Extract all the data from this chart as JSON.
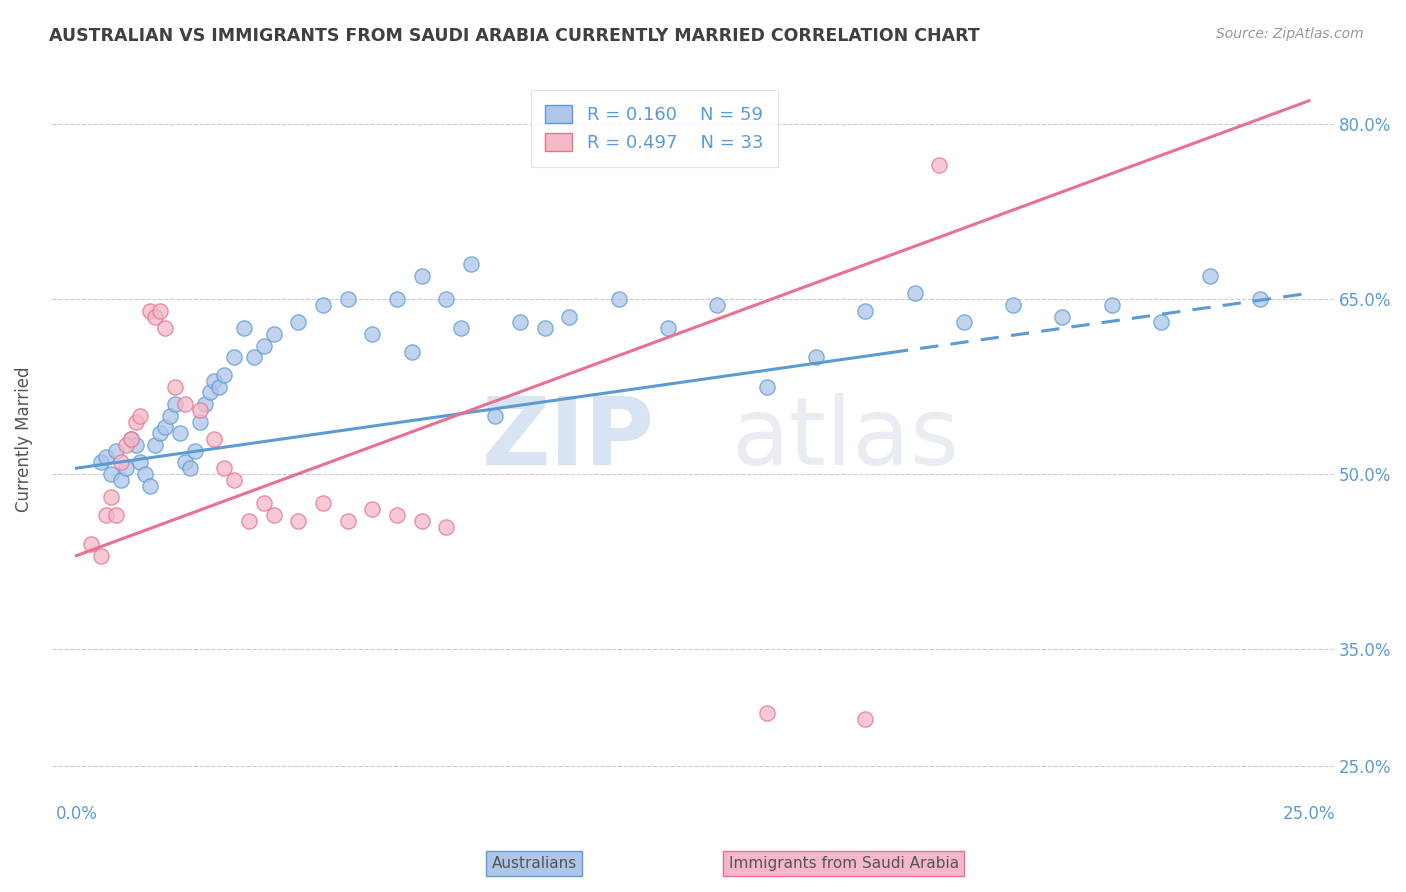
{
  "title": "AUSTRALIAN VS IMMIGRANTS FROM SAUDI ARABIA CURRENTLY MARRIED CORRELATION CHART",
  "source": "Source: ZipAtlas.com",
  "ylabel": "Currently Married",
  "x_ticks": [
    0.0,
    2.5,
    5.0,
    7.5,
    10.0,
    12.5,
    15.0,
    17.5,
    20.0,
    22.5,
    25.0
  ],
  "x_tick_labels": [
    "0.0%",
    "",
    "",
    "",
    "",
    "",
    "",
    "",
    "",
    "",
    "25.0%"
  ],
  "y_ticks": [
    25.0,
    35.0,
    50.0,
    65.0,
    80.0
  ],
  "x_label_bottom_left": "Australians",
  "x_label_bottom_right": "Immigrants from Saudi Arabia",
  "xlim": [
    -0.5,
    25.5
  ],
  "ylim": [
    22.0,
    84.0
  ],
  "watermark_zip": "ZIP",
  "watermark_atlas": "atlas",
  "legend_r1": "R = 0.160",
  "legend_n1": "N = 59",
  "legend_r2": "R = 0.497",
  "legend_n2": "N = 33",
  "blue_fill": "#aec6e8",
  "blue_edge": "#5b9bd5",
  "pink_fill": "#f4b8c8",
  "pink_edge": "#e87090",
  "blue_line_color": "#5b9bd5",
  "pink_line_color": "#e87090",
  "title_color": "#404040",
  "axis_tick_color": "#5b9bd5",
  "grid_color": "#cccccc",
  "blue_scatter_x": [
    0.5,
    0.6,
    0.7,
    0.8,
    0.9,
    1.0,
    1.1,
    1.2,
    1.3,
    1.4,
    1.5,
    1.6,
    1.7,
    1.8,
    1.9,
    2.0,
    2.1,
    2.2,
    2.3,
    2.4,
    2.5,
    2.6,
    2.7,
    2.8,
    2.9,
    3.0,
    3.2,
    3.4,
    3.6,
    3.8,
    4.0,
    4.5,
    5.0,
    5.5,
    6.0,
    6.5,
    7.0,
    7.5,
    8.0,
    9.0,
    10.0,
    11.0,
    13.0,
    14.0,
    15.0,
    17.0,
    18.0,
    20.0,
    21.0,
    22.0,
    23.0,
    24.0,
    9.5,
    12.0,
    16.0,
    19.0,
    8.5,
    6.8,
    7.8
  ],
  "blue_scatter_y": [
    51.0,
    51.5,
    50.0,
    52.0,
    49.5,
    50.5,
    53.0,
    52.5,
    51.0,
    50.0,
    49.0,
    52.5,
    53.5,
    54.0,
    55.0,
    56.0,
    53.5,
    51.0,
    50.5,
    52.0,
    54.5,
    56.0,
    57.0,
    58.0,
    57.5,
    58.5,
    60.0,
    62.5,
    60.0,
    61.0,
    62.0,
    63.0,
    64.5,
    65.0,
    62.0,
    65.0,
    67.0,
    65.0,
    68.0,
    63.0,
    63.5,
    65.0,
    64.5,
    57.5,
    60.0,
    65.5,
    63.0,
    63.5,
    64.5,
    63.0,
    67.0,
    65.0,
    62.5,
    62.5,
    64.0,
    64.5,
    55.0,
    60.5,
    62.5
  ],
  "pink_scatter_x": [
    0.3,
    0.5,
    0.6,
    0.7,
    0.8,
    0.9,
    1.0,
    1.1,
    1.2,
    1.3,
    1.5,
    1.6,
    1.7,
    1.8,
    2.0,
    2.2,
    2.5,
    2.8,
    3.0,
    3.2,
    3.5,
    3.8,
    4.0,
    4.5,
    5.0,
    5.5,
    6.0,
    6.5,
    7.0,
    7.5,
    14.0,
    16.0,
    17.5
  ],
  "pink_scatter_y": [
    44.0,
    43.0,
    46.5,
    48.0,
    46.5,
    51.0,
    52.5,
    53.0,
    54.5,
    55.0,
    64.0,
    63.5,
    64.0,
    62.5,
    57.5,
    56.0,
    55.5,
    53.0,
    50.5,
    49.5,
    46.0,
    47.5,
    46.5,
    46.0,
    47.5,
    46.0,
    47.0,
    46.5,
    46.0,
    45.5,
    29.5,
    29.0,
    76.5
  ],
  "blue_trend_x": [
    0.0,
    25.0
  ],
  "blue_trend_y": [
    50.5,
    65.5
  ],
  "blue_dash_start_x": 16.5,
  "pink_trend_x": [
    0.0,
    25.0
  ],
  "pink_trend_y": [
    43.0,
    82.0
  ]
}
